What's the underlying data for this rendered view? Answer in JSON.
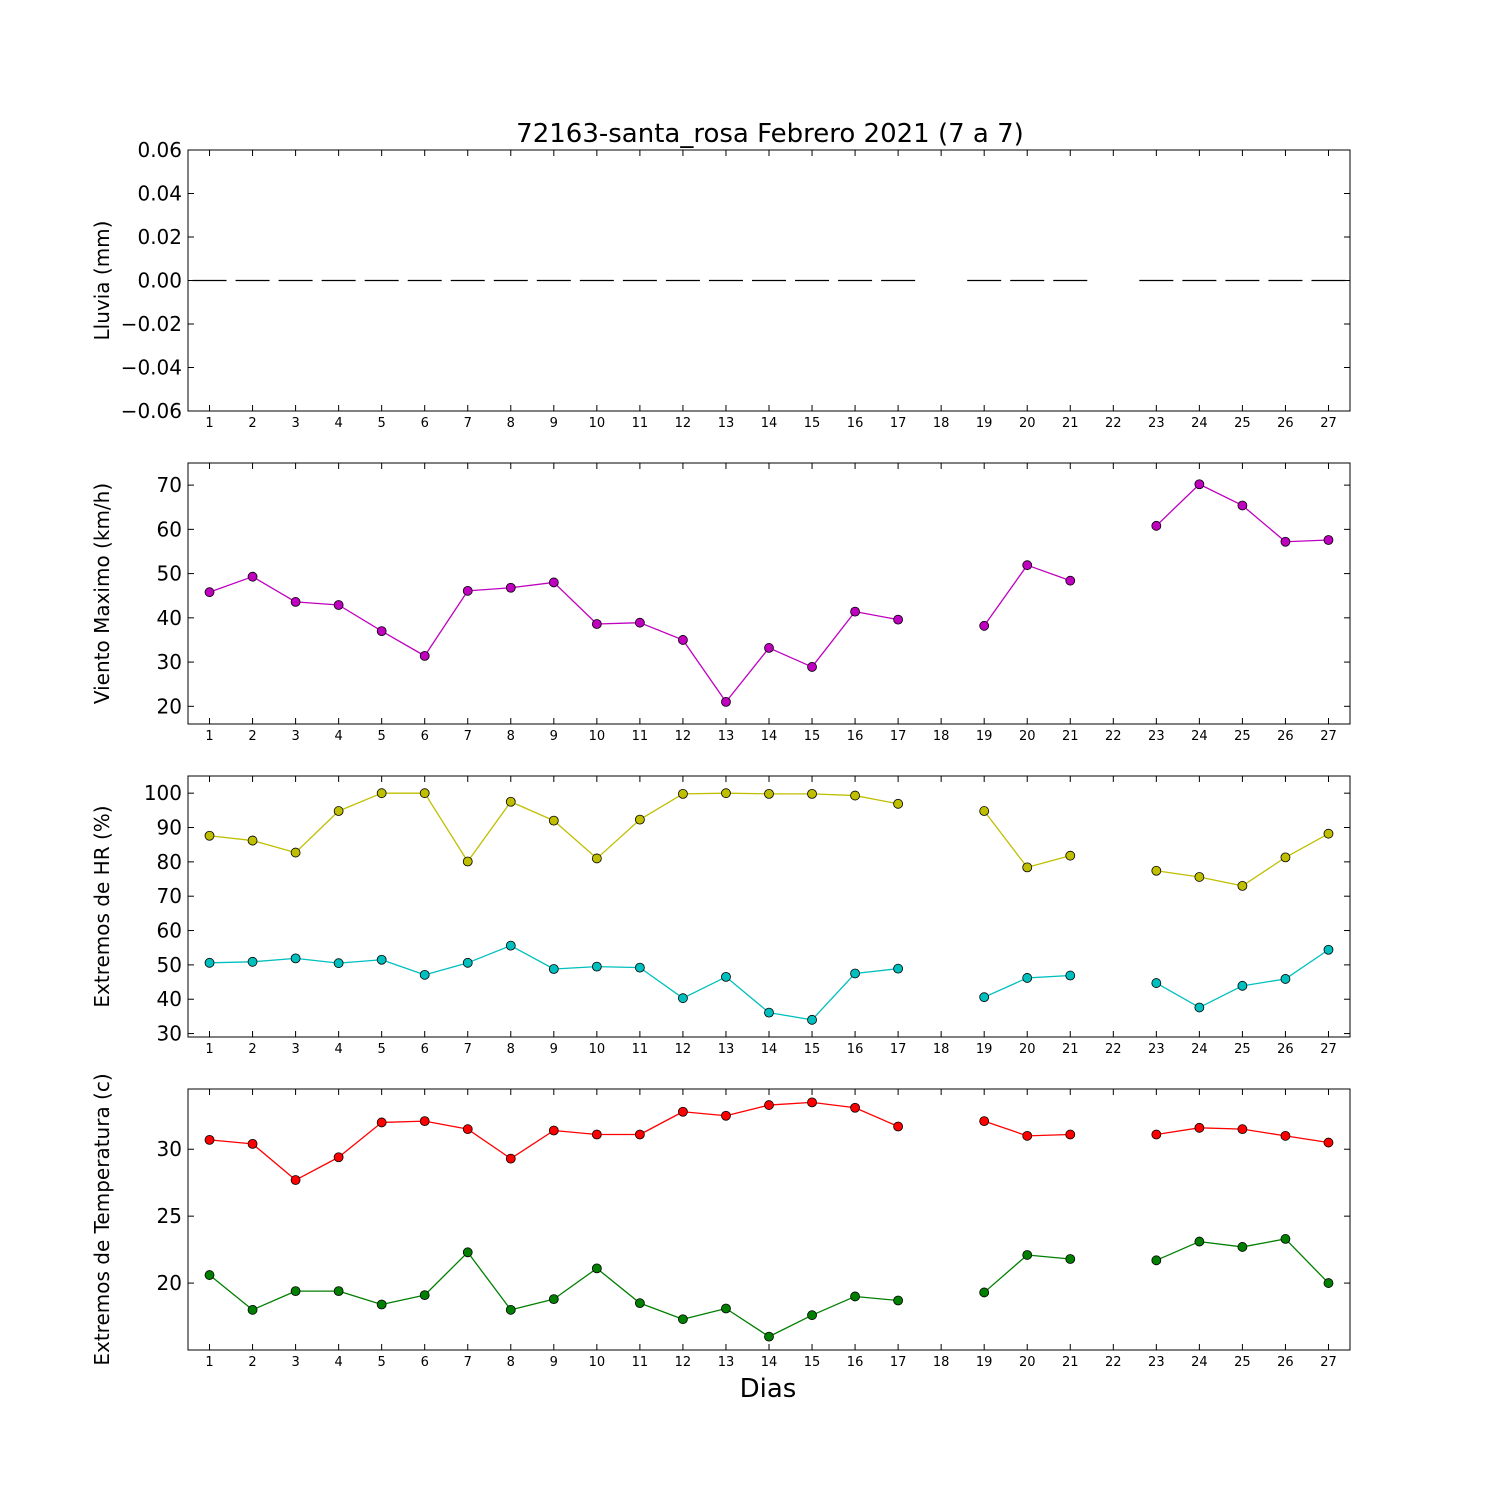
{
  "title": "72163-santa_rosa Febrero 2021  (7 a 7)",
  "xlabel": "Dias",
  "chart_data": [
    {
      "id": "lluvia",
      "type": "bar",
      "ylabel": "Lluvia (mm)",
      "ylim": [
        -0.06,
        0.06
      ],
      "yticks": [
        0.06,
        0.04,
        0.02,
        0.0,
        -0.02,
        -0.04,
        -0.06
      ],
      "ytick_labels": [
        "0.06",
        "0.04",
        "0.02",
        "0.00",
        "−0.02",
        "−0.04",
        "−0.06"
      ],
      "xticks": [
        1,
        2,
        3,
        4,
        5,
        6,
        7,
        8,
        9,
        10,
        11,
        12,
        13,
        14,
        15,
        16,
        17,
        18,
        19,
        20,
        21,
        22,
        23,
        24,
        25,
        26,
        27
      ],
      "series": [
        {
          "color": "#000000",
          "marker": false,
          "x": [
            1,
            2,
            3,
            4,
            5,
            6,
            7,
            8,
            9,
            10,
            11,
            12,
            13,
            14,
            15,
            16,
            17,
            19,
            20,
            21,
            23,
            24,
            25,
            26,
            27
          ],
          "values": [
            0,
            0,
            0,
            0,
            0,
            0,
            0,
            0,
            0,
            0,
            0,
            0,
            0,
            0,
            0,
            0,
            0,
            0,
            0,
            0,
            0,
            0,
            0,
            0,
            0
          ]
        }
      ]
    },
    {
      "id": "viento",
      "type": "line",
      "ylabel": "Viento Maximo (km/h)",
      "ylim": [
        16,
        75
      ],
      "yticks": [
        70,
        60,
        50,
        40,
        30,
        20
      ],
      "ytick_labels": [
        "70",
        "60",
        "50",
        "40",
        "30",
        "20"
      ],
      "xticks": [
        1,
        2,
        3,
        4,
        5,
        6,
        7,
        8,
        9,
        10,
        11,
        12,
        13,
        14,
        15,
        16,
        17,
        18,
        19,
        20,
        21,
        22,
        23,
        24,
        25,
        26,
        27
      ],
      "series": [
        {
          "color": "#bf00bf",
          "marker": true,
          "x": [
            1,
            2,
            3,
            4,
            5,
            6,
            7,
            8,
            9,
            10,
            11,
            12,
            13,
            14,
            15,
            16,
            17,
            18,
            19,
            20,
            21,
            22,
            23,
            24,
            25,
            26,
            27
          ],
          "values": [
            45.8,
            49.3,
            43.6,
            42.9,
            37.0,
            31.4,
            46.1,
            46.8,
            48.0,
            38.6,
            38.9,
            35.0,
            21.0,
            33.2,
            28.9,
            41.4,
            39.6,
            null,
            38.2,
            51.9,
            48.4,
            null,
            60.8,
            70.2,
            65.4,
            57.2,
            57.6
          ]
        }
      ]
    },
    {
      "id": "hr",
      "type": "line",
      "ylabel": "Extremos de HR (%)",
      "ylim": [
        29,
        105
      ],
      "yticks": [
        100,
        90,
        80,
        70,
        60,
        50,
        40,
        30
      ],
      "ytick_labels": [
        "100",
        "90",
        "80",
        "70",
        "60",
        "50",
        "40",
        "30"
      ],
      "xticks": [
        1,
        2,
        3,
        4,
        5,
        6,
        7,
        8,
        9,
        10,
        11,
        12,
        13,
        14,
        15,
        16,
        17,
        18,
        19,
        20,
        21,
        22,
        23,
        24,
        25,
        26,
        27
      ],
      "series": [
        {
          "color": "#bfbf00",
          "marker": true,
          "x": [
            1,
            2,
            3,
            4,
            5,
            6,
            7,
            8,
            9,
            10,
            11,
            12,
            13,
            14,
            15,
            16,
            17,
            18,
            19,
            20,
            21,
            22,
            23,
            24,
            25,
            26,
            27
          ],
          "values": [
            87.6,
            86.2,
            82.7,
            94.8,
            100,
            100,
            80.1,
            97.5,
            92.0,
            81.0,
            92.3,
            99.8,
            100,
            99.8,
            99.8,
            99.3,
            96.9,
            null,
            94.8,
            78.4,
            81.8,
            null,
            77.4,
            75.6,
            73.0,
            81.3,
            88.2
          ]
        },
        {
          "color": "#00bfbf",
          "marker": true,
          "x": [
            1,
            2,
            3,
            4,
            5,
            6,
            7,
            8,
            9,
            10,
            11,
            12,
            13,
            14,
            15,
            16,
            17,
            18,
            19,
            20,
            21,
            22,
            23,
            24,
            25,
            26,
            27
          ],
          "values": [
            50.6,
            50.9,
            51.9,
            50.5,
            51.5,
            47.1,
            50.6,
            55.6,
            48.8,
            49.5,
            49.2,
            40.3,
            46.5,
            36.1,
            34.0,
            47.5,
            48.9,
            null,
            40.6,
            46.2,
            46.9,
            null,
            44.7,
            37.6,
            43.9,
            45.9,
            54.4
          ]
        }
      ]
    },
    {
      "id": "temp",
      "type": "line",
      "ylabel": "Extremos de Temperatura (c)",
      "ylim": [
        15,
        34.5
      ],
      "yticks": [
        30,
        25,
        20
      ],
      "ytick_labels": [
        "30",
        "25",
        "20"
      ],
      "xticks": [
        1,
        2,
        3,
        4,
        5,
        6,
        7,
        8,
        9,
        10,
        11,
        12,
        13,
        14,
        15,
        16,
        17,
        18,
        19,
        20,
        21,
        22,
        23,
        24,
        25,
        26,
        27
      ],
      "series": [
        {
          "color": "#ff0000",
          "marker": true,
          "x": [
            1,
            2,
            3,
            4,
            5,
            6,
            7,
            8,
            9,
            10,
            11,
            12,
            13,
            14,
            15,
            16,
            17,
            18,
            19,
            20,
            21,
            22,
            23,
            24,
            25,
            26,
            27
          ],
          "values": [
            30.7,
            30.4,
            27.7,
            29.4,
            32.0,
            32.1,
            31.5,
            29.3,
            31.4,
            31.1,
            31.1,
            32.8,
            32.5,
            33.3,
            33.5,
            33.1,
            31.7,
            null,
            32.1,
            31.0,
            31.1,
            null,
            31.1,
            31.6,
            31.5,
            31.0,
            30.5
          ]
        },
        {
          "color": "#007f00",
          "marker": true,
          "x": [
            1,
            2,
            3,
            4,
            5,
            6,
            7,
            8,
            9,
            10,
            11,
            12,
            13,
            14,
            15,
            16,
            17,
            18,
            19,
            20,
            21,
            22,
            23,
            24,
            25,
            26,
            27
          ],
          "values": [
            20.6,
            18.0,
            19.4,
            19.4,
            18.4,
            19.1,
            22.3,
            18.0,
            18.8,
            21.1,
            18.5,
            17.3,
            18.1,
            16.0,
            17.6,
            19.0,
            18.7,
            null,
            19.3,
            22.1,
            21.8,
            null,
            21.7,
            23.1,
            22.7,
            23.3,
            20.0
          ]
        }
      ]
    }
  ]
}
